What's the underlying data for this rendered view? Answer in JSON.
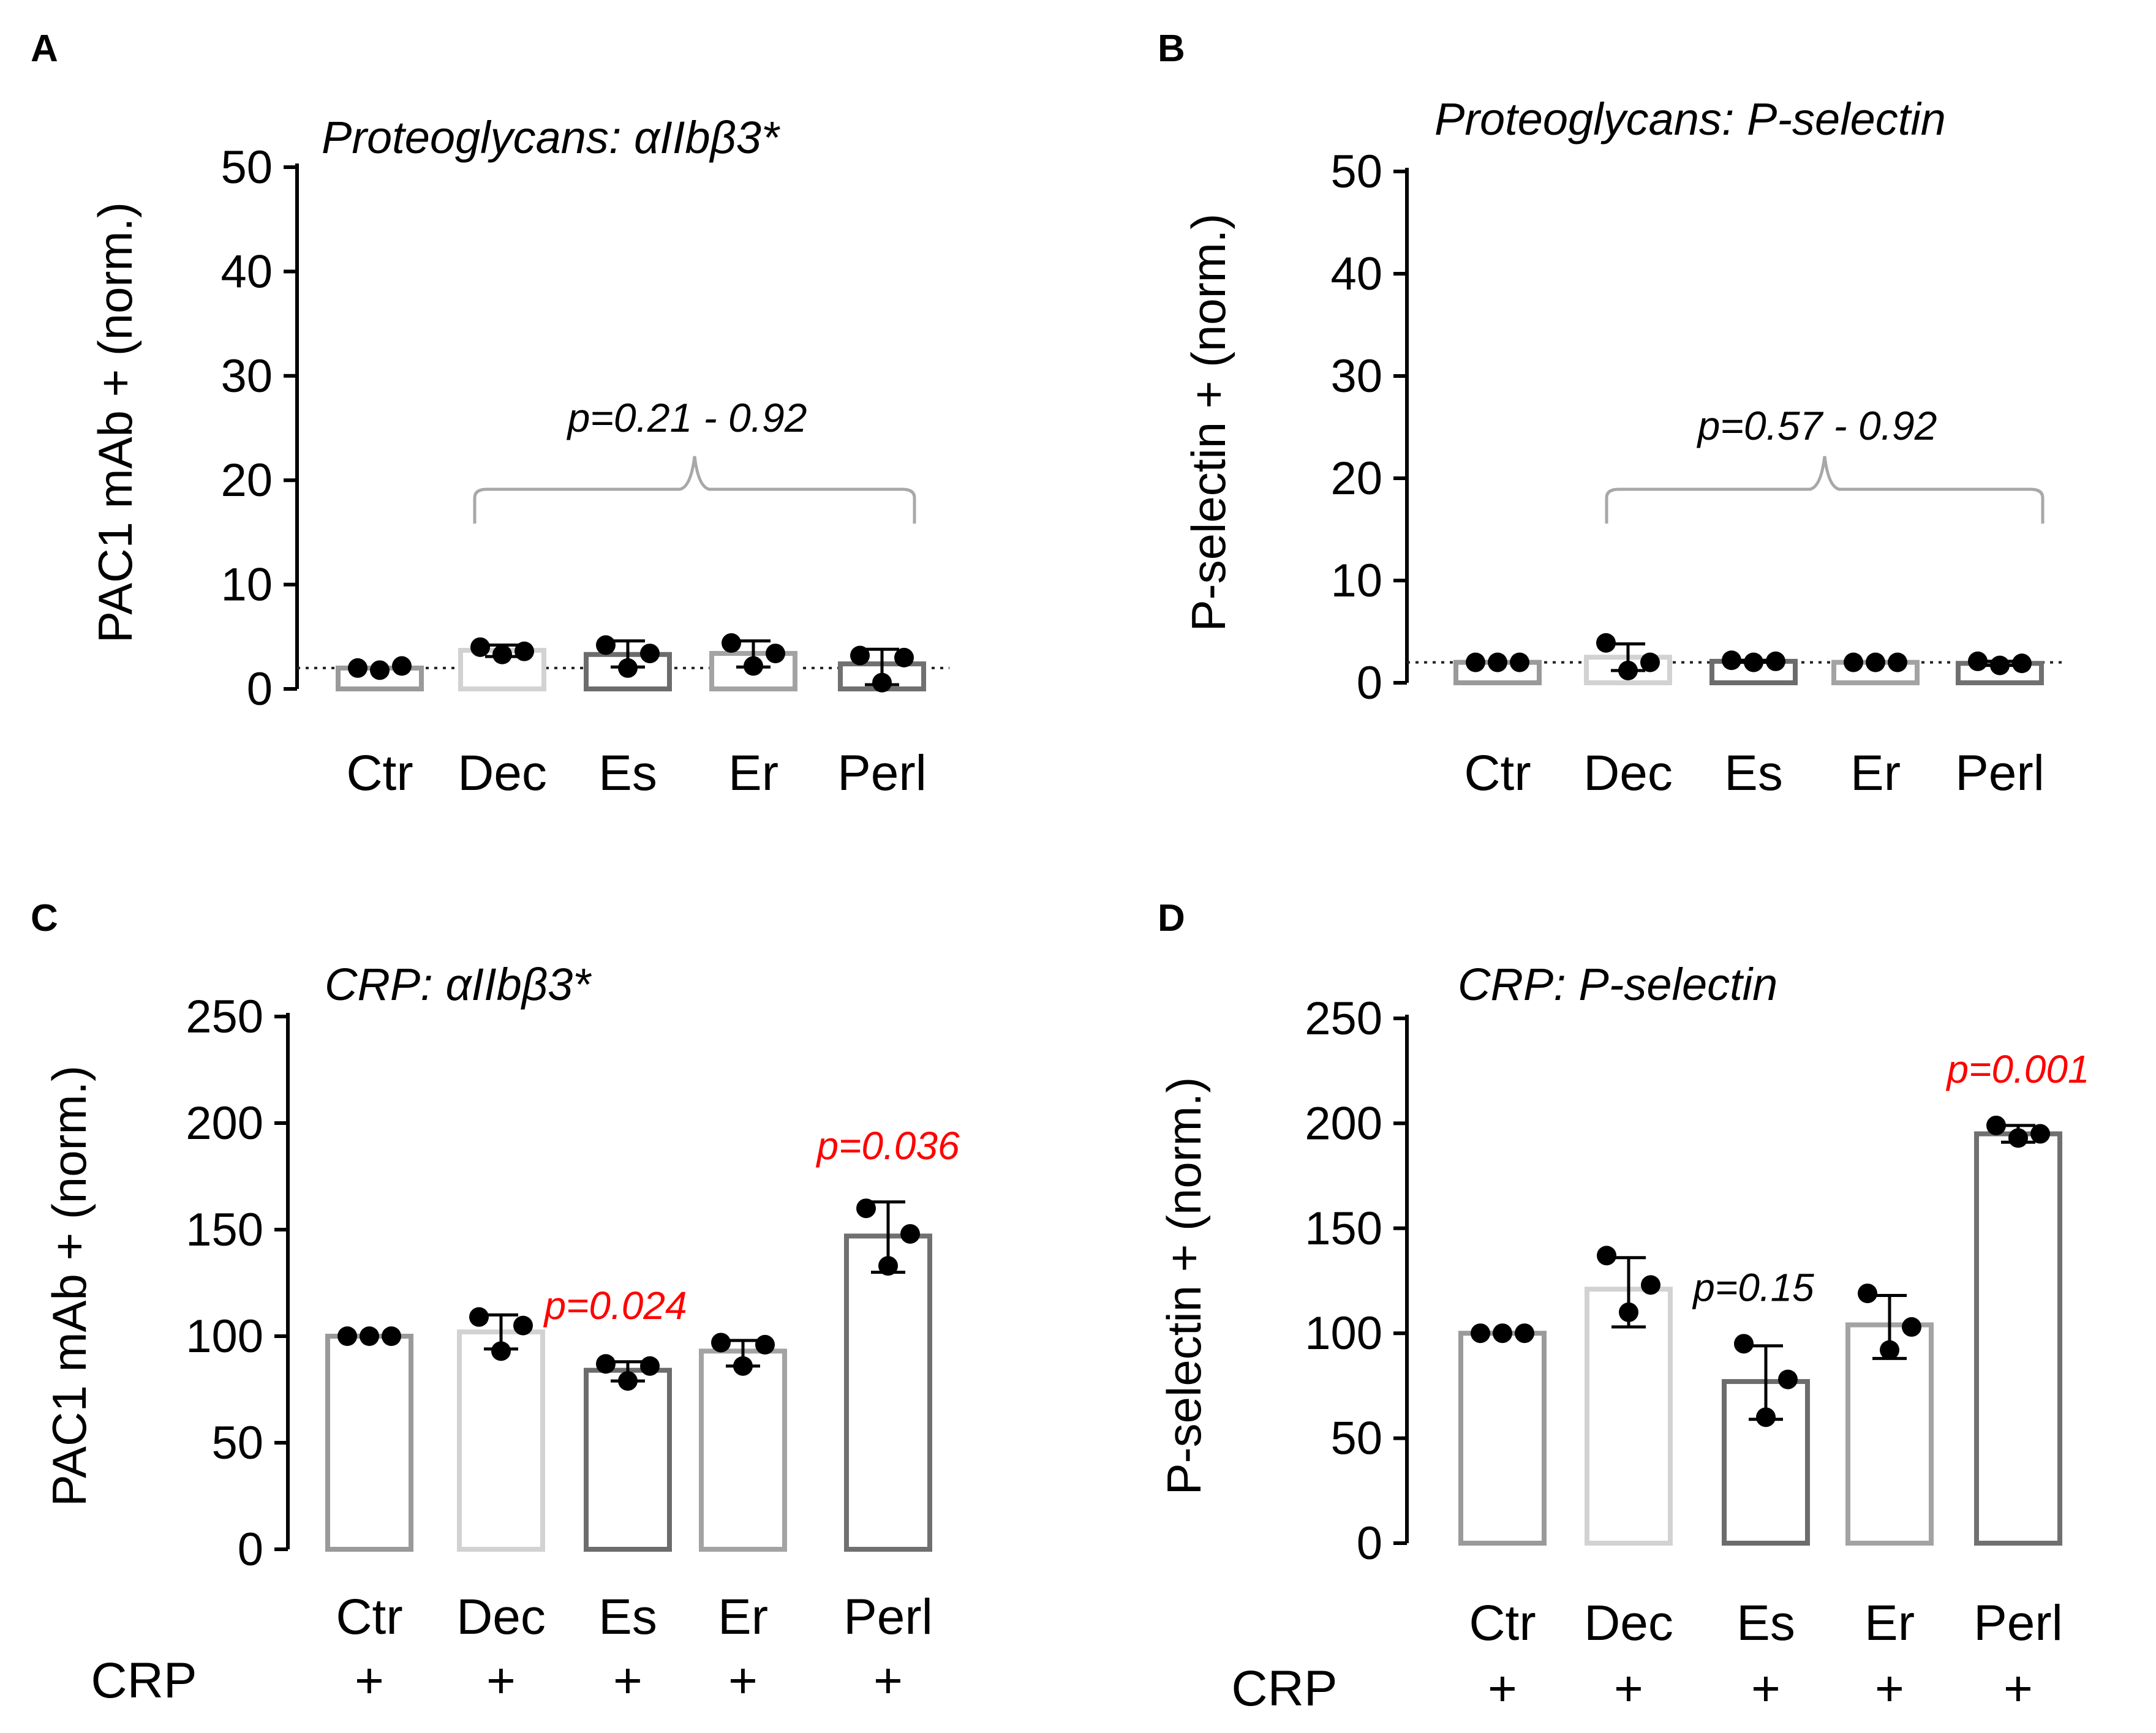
{
  "colors": {
    "Ctr": "#9a9a9a",
    "Dec": "#d2d2d2",
    "Es": "#6c6c6c",
    "Er": "#a3a3a3",
    "Perl": "#707070",
    "axis": "#000000",
    "point": "#000000",
    "significant": "#ff0000",
    "bracket": "#a8a8a8"
  },
  "chart_data": [
    {
      "panel": "A",
      "type": "bar",
      "title": "Proteoglycans: αIIbβ3*",
      "ylabel": "PAC1 mAb + (norm.)",
      "xlabel": "",
      "ylim": [
        0,
        50
      ],
      "yticks": [
        "0",
        "10",
        "20",
        "30",
        "40",
        "50"
      ],
      "categories": [
        "Ctr",
        "Dec",
        "Es",
        "Er",
        "Perl"
      ],
      "values": [
        2.0,
        3.7,
        3.3,
        3.4,
        2.4
      ],
      "error": [
        [
          2.0,
          2.0
        ],
        [
          3.1,
          4.2
        ],
        [
          2.1,
          4.6
        ],
        [
          2.1,
          4.6
        ],
        [
          0.4,
          3.8
        ]
      ],
      "points": [
        [
          2.0,
          1.8,
          2.2
        ],
        [
          4.0,
          3.3,
          3.6
        ],
        [
          4.2,
          2.0,
          3.4
        ],
        [
          4.4,
          2.2,
          3.4
        ],
        [
          3.2,
          0.6,
          3.0
        ]
      ],
      "baseline": 2.0,
      "annotations": [
        {
          "text": "p=0.21 - 0.92",
          "significant": false,
          "bracket": [
            "Dec",
            "Perl"
          ]
        }
      ],
      "crp_row": null
    },
    {
      "panel": "B",
      "type": "bar",
      "title": "Proteoglycans: P-selectin",
      "ylabel": "P-selectin + (norm.)",
      "xlabel": "",
      "ylim": [
        0,
        50
      ],
      "yticks": [
        "0",
        "10",
        "20",
        "30",
        "40",
        "50"
      ],
      "categories": [
        "Ctr",
        "Dec",
        "Es",
        "Er",
        "Perl"
      ],
      "values": [
        2.0,
        2.5,
        2.1,
        2.0,
        1.9
      ],
      "error": [
        [
          2.0,
          2.0
        ],
        [
          1.2,
          3.8
        ],
        [
          2.0,
          2.2
        ],
        [
          2.0,
          2.0
        ],
        [
          1.7,
          2.1
        ]
      ],
      "points": [
        [
          2.0,
          2.0,
          2.0
        ],
        [
          3.9,
          1.2,
          2.0
        ],
        [
          2.2,
          2.0,
          2.1
        ],
        [
          2.0,
          2.0,
          2.0
        ],
        [
          2.1,
          1.7,
          1.9
        ]
      ],
      "baseline": 2.0,
      "annotations": [
        {
          "text": "p=0.57 - 0.92",
          "significant": false,
          "bracket": [
            "Dec",
            "Perl"
          ]
        }
      ],
      "crp_row": null
    },
    {
      "panel": "C",
      "type": "bar",
      "title": "CRP: αIIbβ3*",
      "ylabel": "PAC1 mAb + (norm.)",
      "xlabel": "",
      "ylim": [
        0,
        250
      ],
      "yticks": [
        "0",
        "50",
        "100",
        "150",
        "200",
        "250"
      ],
      "categories": [
        "Ctr",
        "Dec",
        "Es",
        "Er",
        "Perl"
      ],
      "values": [
        100,
        102,
        84,
        93,
        147
      ],
      "error": [
        [
          100,
          100
        ],
        [
          94,
          110
        ],
        [
          79,
          88
        ],
        [
          86,
          98
        ],
        [
          130,
          163
        ]
      ],
      "points": [
        [
          100,
          100,
          100
        ],
        [
          109,
          93,
          105
        ],
        [
          87,
          79,
          86
        ],
        [
          97,
          86,
          96
        ],
        [
          160,
          133,
          148
        ]
      ],
      "baseline": null,
      "annotations": [
        {
          "text": "p=0.024",
          "significant": true,
          "category": "Es"
        },
        {
          "text": "p=0.036",
          "significant": true,
          "category": "Perl"
        }
      ],
      "crp_row": {
        "label": "CRP",
        "marks": [
          "+",
          "+",
          "+",
          "+",
          "+"
        ]
      }
    },
    {
      "panel": "D",
      "type": "bar",
      "title": "CRP: P-selectin",
      "ylabel": "P-selectin + (norm.)",
      "xlabel": "",
      "ylim": [
        0,
        250
      ],
      "yticks": [
        "0",
        "50",
        "100",
        "150",
        "200",
        "250"
      ],
      "categories": [
        "Ctr",
        "Dec",
        "Es",
        "Er",
        "Perl"
      ],
      "values": [
        100,
        121,
        77,
        104,
        195
      ],
      "error": [
        [
          100,
          100
        ],
        [
          103,
          136
        ],
        [
          59,
          94
        ],
        [
          88,
          118
        ],
        [
          191,
          199
        ]
      ],
      "points": [
        [
          100,
          100,
          100
        ],
        [
          137,
          110,
          123
        ],
        [
          95,
          60,
          78
        ],
        [
          119,
          92,
          103
        ],
        [
          199,
          193,
          195
        ]
      ],
      "baseline": null,
      "annotations": [
        {
          "text": "p=0.15",
          "significant": false,
          "category": "Es"
        },
        {
          "text": "p=0.001",
          "significant": true,
          "category": "Perl"
        }
      ],
      "crp_row": {
        "label": "CRP",
        "marks": [
          "+",
          "+",
          "+",
          "+",
          "+"
        ]
      }
    }
  ]
}
